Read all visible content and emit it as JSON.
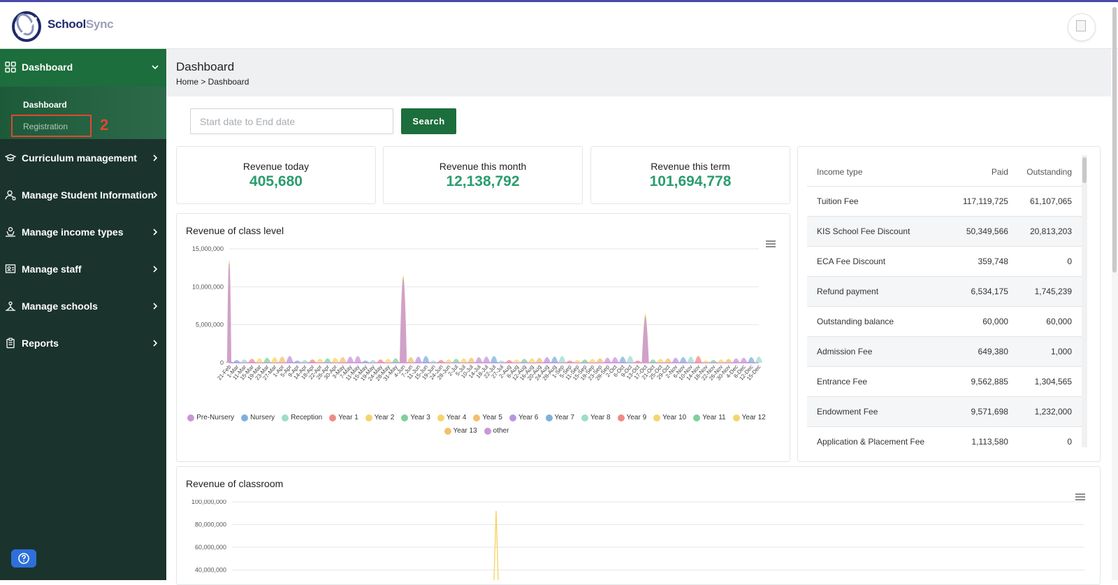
{
  "app": {
    "brand_part1": "School",
    "brand_part2": "Sync"
  },
  "sidebar": {
    "items": [
      {
        "label": "Dashboard",
        "icon": "grid-icon"
      },
      {
        "label": "Curriculum management",
        "icon": "graduation-cap-icon"
      },
      {
        "label": "Manage Student Information",
        "icon": "user-settings-icon"
      },
      {
        "label": "Manage income types",
        "icon": "money-hand-icon"
      },
      {
        "label": "Manage staff",
        "icon": "staff-board-icon"
      },
      {
        "label": "Manage schools",
        "icon": "school-icon"
      },
      {
        "label": "Reports",
        "icon": "clipboard-icon"
      }
    ],
    "submenu": [
      {
        "label": "Dashboard"
      },
      {
        "label": "Registration"
      }
    ],
    "annotation_number": "2"
  },
  "page": {
    "title": "Dashboard",
    "breadcrumb": "Home > Dashboard"
  },
  "filters": {
    "date_placeholder": "Start date to End date",
    "search_label": "Search"
  },
  "stats": [
    {
      "label": "Revenue today",
      "value": "405,680"
    },
    {
      "label": "Revenue this month",
      "value": "12,138,792"
    },
    {
      "label": "Revenue this term",
      "value": "101,694,778"
    }
  ],
  "income_table": {
    "headers": [
      "Income type",
      "Paid",
      "Outstanding"
    ],
    "rows": [
      [
        "Tuition Fee",
        "117,119,725",
        "61,107,065"
      ],
      [
        "KIS School Fee Discount",
        "50,349,566",
        "20,813,203"
      ],
      [
        "ECA Fee Discount",
        "359,748",
        "0"
      ],
      [
        "Refund payment",
        "6,534,175",
        "1,745,239"
      ],
      [
        "Outstanding balance",
        "60,000",
        "60,000"
      ],
      [
        "Admission Fee",
        "649,380",
        "1,000"
      ],
      [
        "Entrance Fee",
        "9,562,885",
        "1,304,565"
      ],
      [
        "Endowment Fee",
        "9,571,698",
        "1,232,000"
      ],
      [
        "Application & Placement Fee",
        "1,113,580",
        "0"
      ]
    ]
  },
  "colors": {
    "brand_green": "#1c6e3c",
    "sidebar_dark": "#1a332c",
    "stat_value": "#2a9d6f",
    "annotation_red": "#e2472f"
  },
  "chart_data": [
    {
      "type": "area",
      "title": "Revenue of class level",
      "xlabel": "",
      "ylabel": "",
      "ylim": [
        0,
        15000000
      ],
      "yticks": [
        "15,000,000",
        "10,000,000",
        "5,000,000",
        "0"
      ],
      "x": [
        "21-Feb",
        "1-Mar",
        "11-Mar",
        "15-Mar",
        "19-Mar",
        "23-Mar",
        "27-Mar",
        "1-Apr",
        "5-Apr",
        "9-Apr",
        "14-Apr",
        "18-Apr",
        "22-Apr",
        "26-Apr",
        "30-Apr",
        "3-May",
        "7-May",
        "11-May",
        "15-May",
        "19-May",
        "24-May",
        "28-May",
        "31-May",
        "4-Jun",
        "7-Jun",
        "11-Jun",
        "15-Jun",
        "19-Jun",
        "24-Jun",
        "28-Jun",
        "2-Jul",
        "5-Jul",
        "10-Jul",
        "14-Jul",
        "18-Jul",
        "22-Jul",
        "27-Jul",
        "2-Aug",
        "8-Aug",
        "12-Aug",
        "16-Aug",
        "20-Aug",
        "24-Aug",
        "28-Aug",
        "1-Sep",
        "5-Sep",
        "11-Sep",
        "15-Sep",
        "19-Sep",
        "23-Sep",
        "28-Sep",
        "2-Oct",
        "6-Oct",
        "9-Oct",
        "13-Oct",
        "17-Oct",
        "21-Oct",
        "25-Oct",
        "29-Oct",
        "2-Nov",
        "6-Nov",
        "10-Nov",
        "14-Nov",
        "18-Nov",
        "22-Nov",
        "26-Nov",
        "30-Nov",
        "4-Dec",
        "8-Dec",
        "12-Dec",
        "15-Dec"
      ],
      "legend": [
        "Pre-Nursery",
        "Nursery",
        "Reception",
        "Year 1",
        "Year 2",
        "Year 3",
        "Year 4",
        "Year 5",
        "Year 6",
        "Year 7",
        "Year 8",
        "Year 9",
        "Year 10",
        "Year 11",
        "Year 12",
        "Year 13",
        "other"
      ],
      "legend_colors": [
        "#c996d8",
        "#7fb0dc",
        "#9edccd",
        "#f08a86",
        "#f5d56b",
        "#7dd19a",
        "#f5d56b",
        "#f3bf6c",
        "#b996e0",
        "#7fb0dc",
        "#9edccd",
        "#f08a86",
        "#f5d56b",
        "#7dd19a",
        "#f5d56b",
        "#f3bf6c",
        "#c996d8"
      ],
      "peaks": [
        {
          "x": "21-Feb",
          "value": 13500000
        },
        {
          "x": "4-Jun",
          "value": 11500000
        },
        {
          "x": "17-Oct",
          "value": 6500000
        }
      ]
    },
    {
      "type": "line",
      "title": "Revenue of classroom",
      "xlabel": "",
      "ylabel": "",
      "ylim": [
        0,
        100000000
      ],
      "yticks": [
        "100,000,000",
        "80,000,000",
        "60,000,000",
        "40,000,000"
      ],
      "peaks": [
        {
          "x": "spike",
          "value": 92000000
        }
      ]
    }
  ]
}
